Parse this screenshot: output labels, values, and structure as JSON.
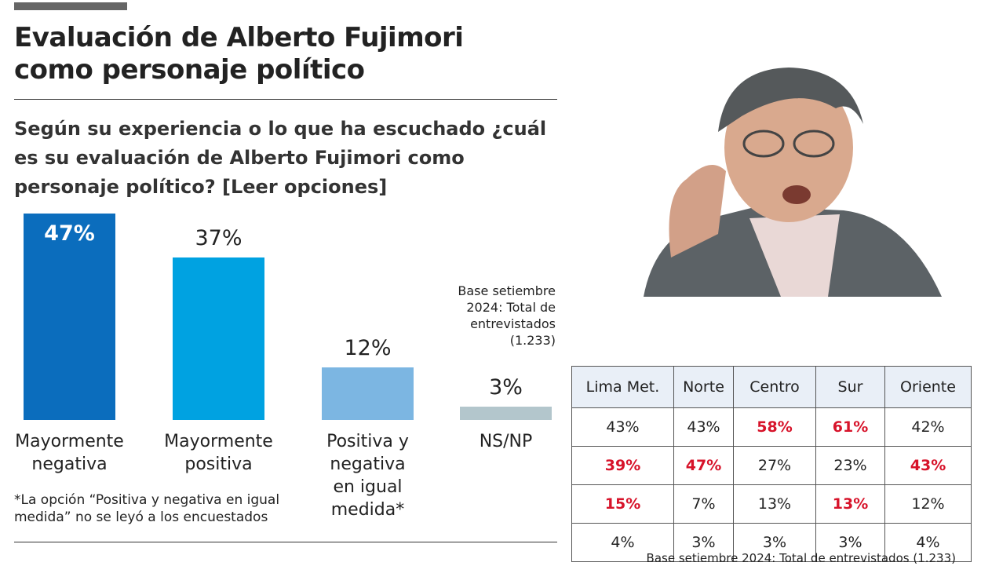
{
  "chart_data": {
    "type": "bar",
    "title": "Evaluación de Alberto Fujimori como personaje político",
    "subtitle": "Según su experiencia o lo que ha escuchado ¿cuál es su evaluación de Alberto Fujimori como personaje político? [Leer opciones]",
    "categories": [
      "Mayormente negativa",
      "Mayormente positiva",
      "Positiva y negativa en igual medida*",
      "NS/NP"
    ],
    "values": [
      47,
      37,
      12,
      3
    ],
    "value_labels": [
      "47%",
      "37%",
      "12%",
      "3%"
    ],
    "colors": [
      "#0b6dbd",
      "#00a2e1",
      "#7cb6e2",
      "#b3c6cc"
    ],
    "note": "*La opción “Positiva y negativa en igual medida” no se leyó a los encuestados",
    "base_note": "Base setiembre 2024: Total de entrevistados (1.233)"
  },
  "table": {
    "columns": [
      "Lima Met.",
      "Norte",
      "Centro",
      "Sur",
      "Oriente"
    ],
    "rows": [
      [
        {
          "text": "43%",
          "highlight": false
        },
        {
          "text": "43%",
          "highlight": false
        },
        {
          "text": "58%",
          "highlight": true
        },
        {
          "text": "61%",
          "highlight": true
        },
        {
          "text": "42%",
          "highlight": false
        }
      ],
      [
        {
          "text": "39%",
          "highlight": true
        },
        {
          "text": "47%",
          "highlight": true
        },
        {
          "text": "27%",
          "highlight": false
        },
        {
          "text": "23%",
          "highlight": false
        },
        {
          "text": "43%",
          "highlight": true
        }
      ],
      [
        {
          "text": "15%",
          "highlight": true
        },
        {
          "text": "7%",
          "highlight": false
        },
        {
          "text": "13%",
          "highlight": false
        },
        {
          "text": "13%",
          "highlight": true
        },
        {
          "text": "12%",
          "highlight": false
        }
      ],
      [
        {
          "text": "4%",
          "highlight": false
        },
        {
          "text": "3%",
          "highlight": false
        },
        {
          "text": "3%",
          "highlight": false
        },
        {
          "text": "3%",
          "highlight": false
        },
        {
          "text": "4%",
          "highlight": false
        }
      ]
    ]
  }
}
